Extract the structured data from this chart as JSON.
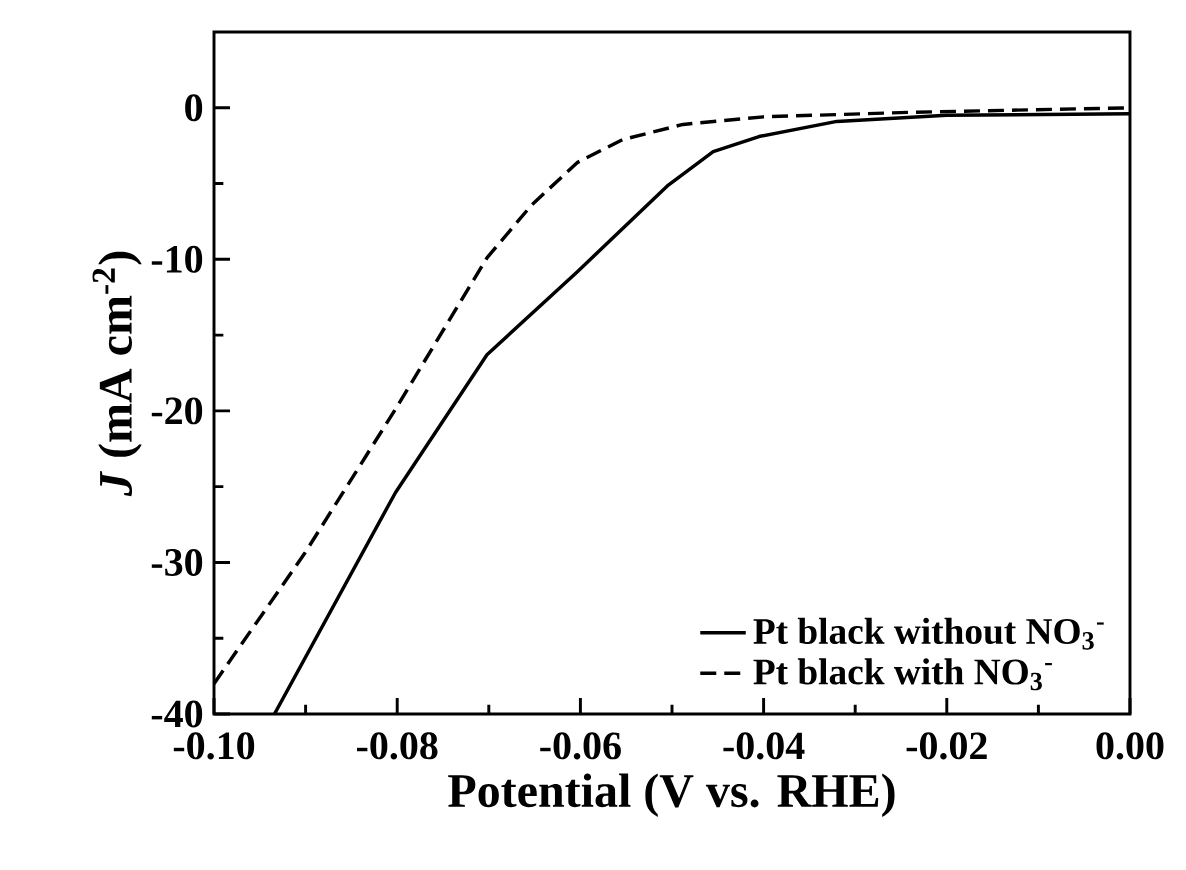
{
  "chart_data": {
    "type": "line",
    "xlabel": "Potential (V vs. RHE)",
    "ylabel": "*J* (mA cm$^{-2}$)",
    "xlim": [
      -0.1,
      0.0
    ],
    "ylim": [
      -40,
      5
    ],
    "xticks": [
      {
        "value": -0.1,
        "label": "-0.10"
      },
      {
        "value": -0.08,
        "label": "-0.08"
      },
      {
        "value": -0.06,
        "label": "-0.06"
      },
      {
        "value": -0.04,
        "label": "-0.04"
      },
      {
        "value": -0.02,
        "label": "-0.02"
      },
      {
        "value": 0.0,
        "label": "0.00"
      }
    ],
    "yticks": [
      -40,
      -30,
      -20,
      -10,
      0
    ],
    "legend": "bottom right",
    "series": [
      {
        "name": "Pt black without NO$_{3}$$^{-}$",
        "color": "#000000",
        "line_style": "solid",
        "x": [
          -0.0934,
          -0.0802,
          -0.0702,
          -0.0603,
          -0.0504,
          -0.0455,
          -0.0405,
          -0.032,
          -0.02,
          0.0
        ],
        "values": [
          -40,
          -25.4,
          -16.3,
          -10.8,
          -5.1,
          -2.9,
          -1.9,
          -0.9,
          -0.5,
          -0.4
        ]
      },
      {
        "name": "Pt black with NO$_{3}$$^{-}$",
        "color": "#000000",
        "line_style": "dashed",
        "x": [
          -0.1,
          -0.0901,
          -0.0802,
          -0.0702,
          -0.0653,
          -0.0603,
          -0.0554,
          -0.0488,
          -0.04,
          -0.024,
          0.0
        ],
        "values": [
          -38,
          -29.4,
          -19.9,
          -9.9,
          -6.4,
          -3.6,
          -2.1,
          -1.1,
          -0.6,
          -0.3,
          0.0
        ]
      }
    ]
  }
}
